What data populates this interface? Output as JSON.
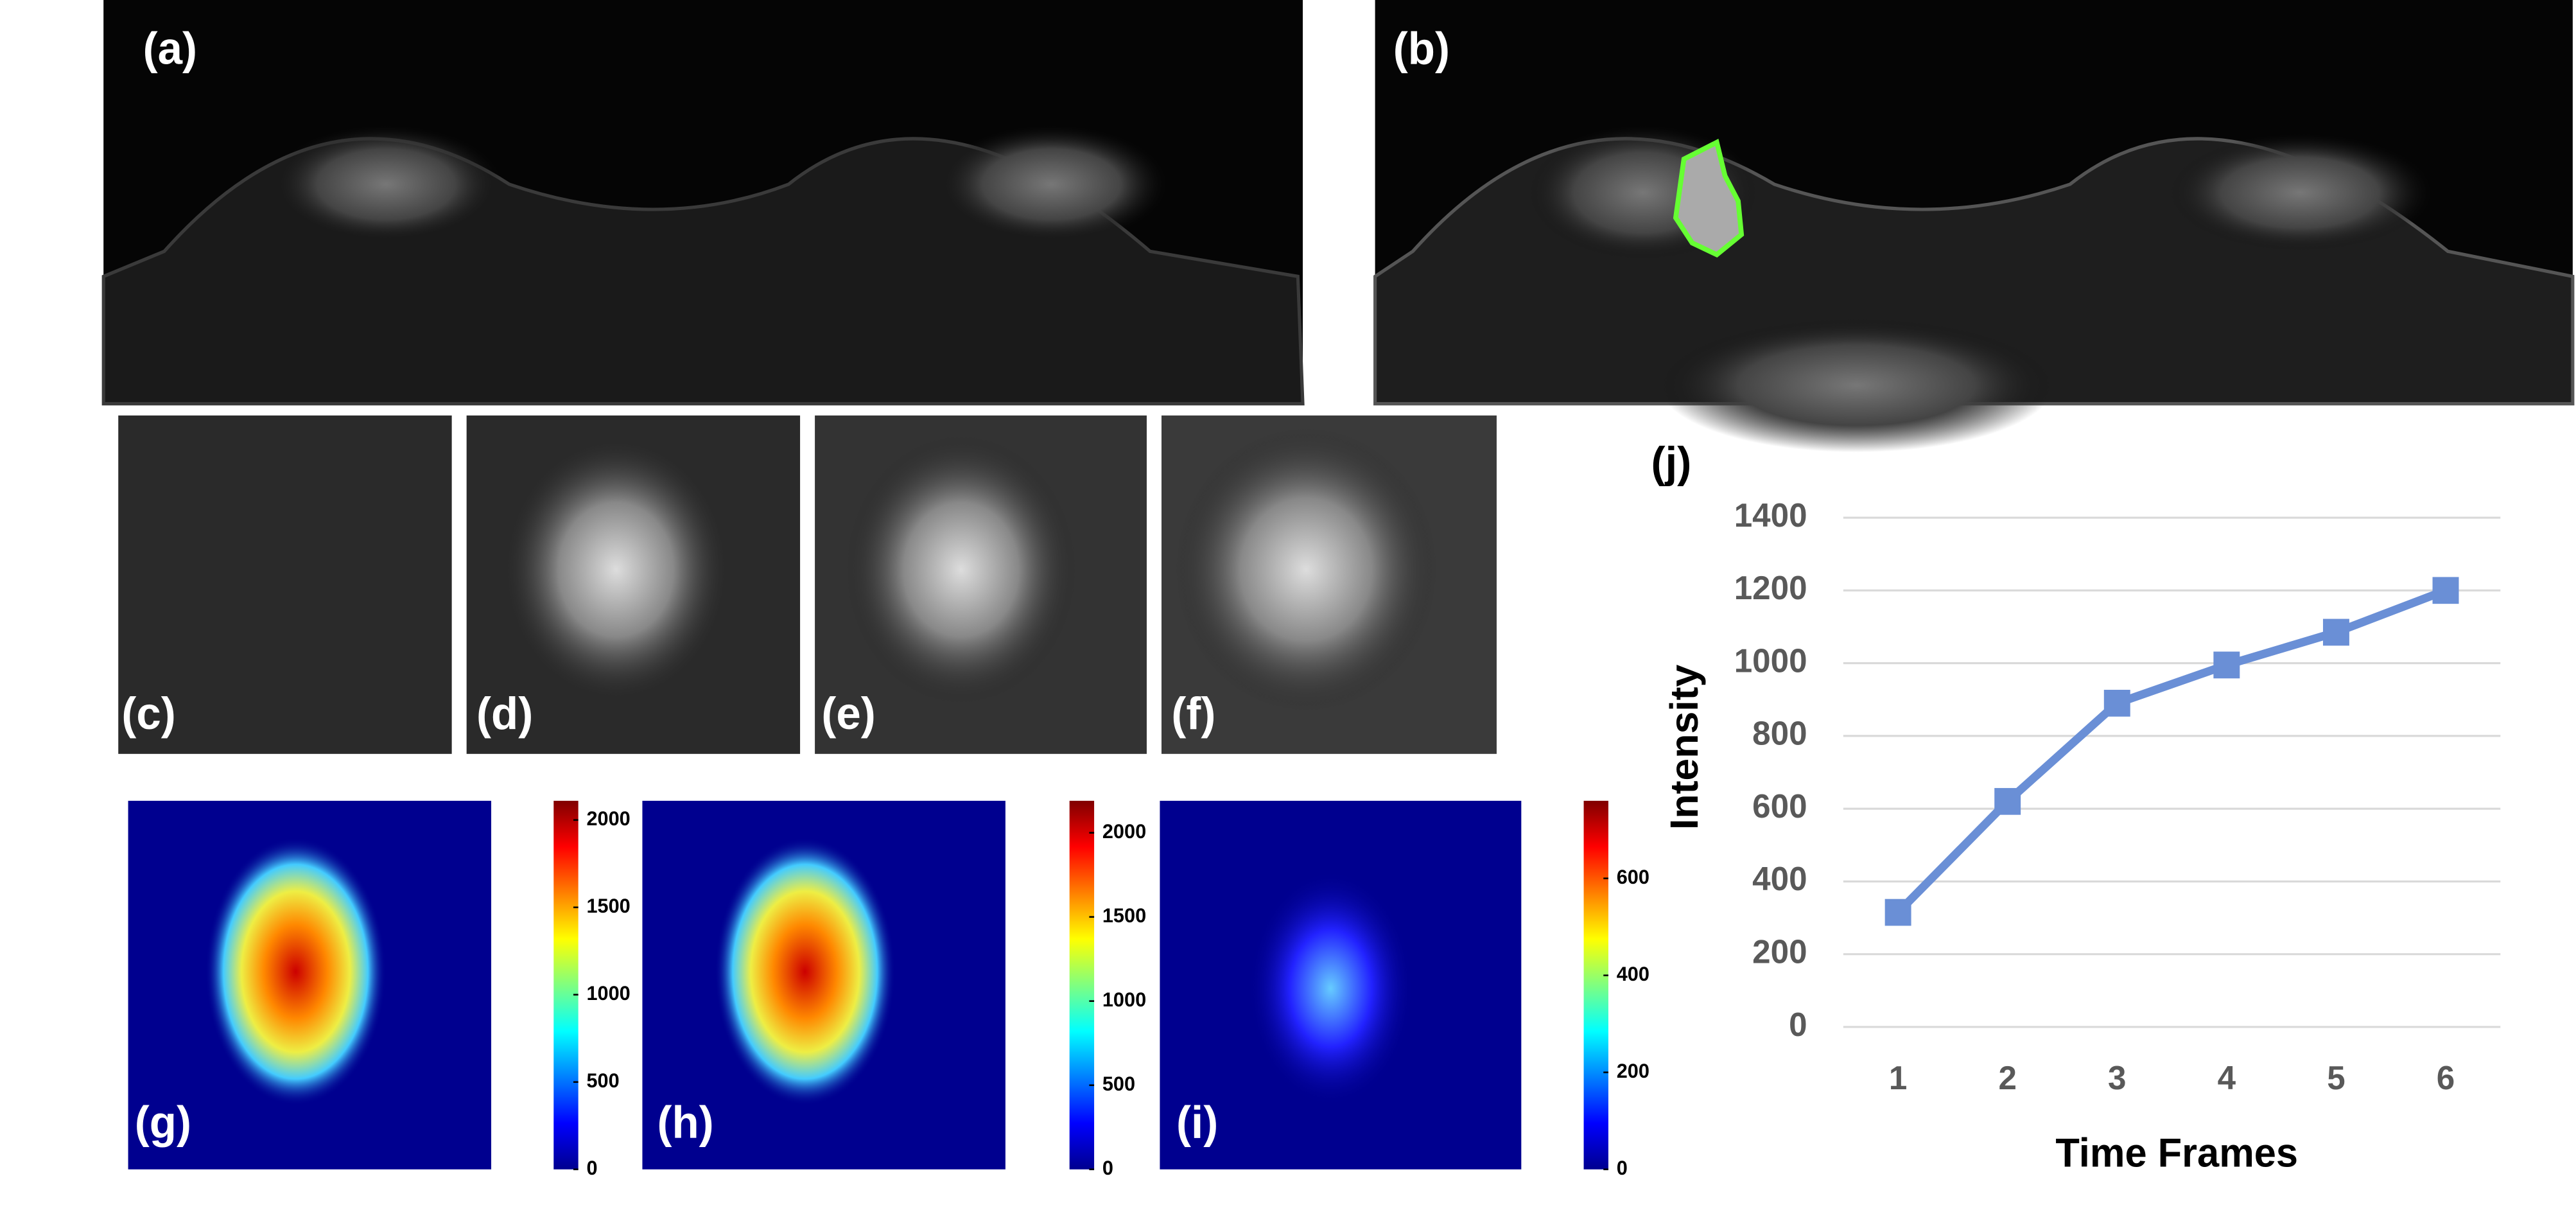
{
  "panel_labels": [
    "(a)",
    "(b)",
    "(c)",
    "(d)",
    "(e)",
    "(f)",
    "(g)",
    "(h)",
    "(i)"
  ],
  "colorbars": [
    {
      "lim": [
        0,
        2110
      ],
      "ticks": [
        0,
        500,
        1000,
        1500,
        2000
      ]
    },
    {
      "lim": [
        0,
        2190
      ],
      "ticks": [
        0,
        500,
        1000,
        1500,
        2000
      ]
    },
    {
      "lim": [
        0,
        760
      ],
      "ticks": [
        0,
        200,
        400,
        600
      ]
    }
  ],
  "chart_data": {
    "type": "line",
    "panel_label": "(j)",
    "y_label": "Intensity",
    "x_label": "Time Frames",
    "categories": [
      "1",
      "2",
      "3",
      "4",
      "5",
      "6"
    ],
    "values": [
      315,
      620,
      890,
      995,
      1085,
      1200
    ],
    "color": "#6a8fd6",
    "marker": "square",
    "ylim": [
      0,
      1400
    ],
    "yticks": [
      0,
      200,
      400,
      600,
      800,
      1000,
      1200,
      1400
    ],
    "grid": true
  }
}
